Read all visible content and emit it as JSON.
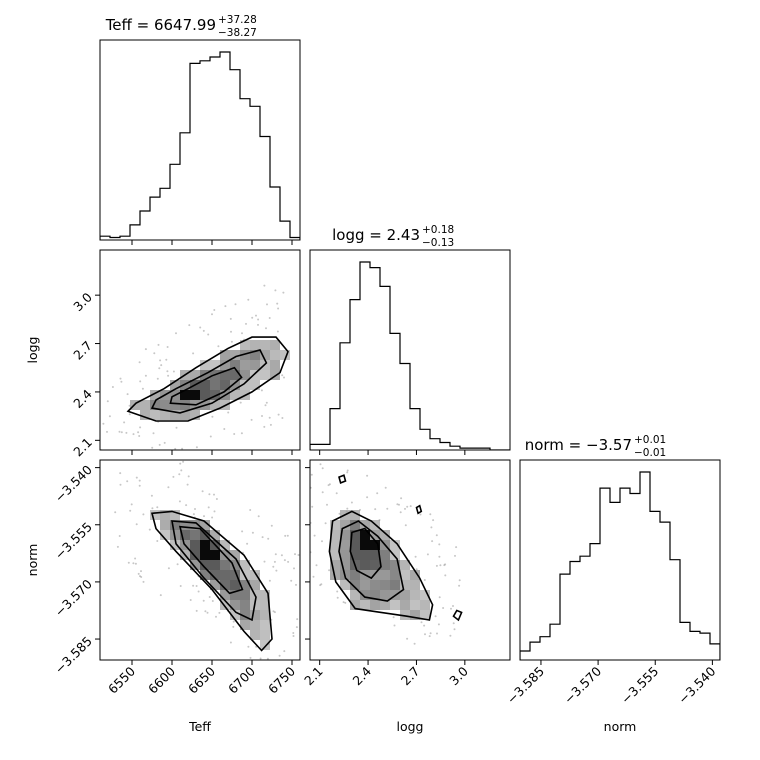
{
  "chart_data": {
    "type": "corner",
    "parameters": [
      "Teff",
      "logg",
      "norm"
    ],
    "axis_labels": [
      "Teff",
      "logg",
      "norm"
    ],
    "ranges": [
      [
        6510,
        6760
      ],
      [
        2.04,
        3.28
      ],
      [
        -3.5905,
        -3.538
      ]
    ],
    "ticks": [
      {
        "values": [
          6550,
          6600,
          6650,
          6700,
          6750
        ],
        "labels": [
          "6550",
          "6600",
          "6650",
          "6700",
          "6750"
        ]
      },
      {
        "values": [
          2.1,
          2.4,
          2.7,
          3.0
        ],
        "labels": [
          "2.1",
          "2.4",
          "2.7",
          "3.0"
        ]
      },
      {
        "values": [
          -3.585,
          -3.57,
          -3.555,
          -3.54
        ],
        "labels": [
          "−3.585",
          "−3.570",
          "−3.555",
          "−3.540"
        ]
      }
    ],
    "titles": [
      {
        "name": "Teff",
        "median": "6647.99",
        "plus": "+37.28",
        "minus": "−38.27"
      },
      {
        "name": "logg",
        "median": "2.43",
        "plus": "+0.18",
        "minus": "−0.13"
      },
      {
        "name": "norm",
        "median": "−3.57",
        "plus": "+0.01",
        "minus": "−0.01"
      }
    ],
    "histograms": [
      {
        "edges_start": 6510,
        "bin_width": 12.5,
        "counts": [
          3,
          2,
          3,
          12,
          23,
          34,
          41,
          60,
          85,
          140,
          142,
          145,
          149,
          135,
          112,
          106,
          82,
          42,
          15,
          2
        ]
      },
      {
        "edges_start": 2.04,
        "bin_width": 0.062,
        "counts": [
          3,
          3,
          22,
          57,
          80,
          100,
          97,
          87,
          62,
          46,
          22,
          11,
          6,
          4,
          2,
          1,
          1,
          1,
          0,
          0
        ]
      },
      {
        "edges_start": -3.5905,
        "bin_width": 0.002625,
        "counts": [
          5,
          10,
          13,
          20,
          48,
          55,
          58,
          65,
          96,
          88,
          96,
          93,
          105,
          83,
          77,
          56,
          21,
          16,
          15,
          9
        ]
      }
    ],
    "density_2d": [
      {
        "x": "Teff",
        "y": "logg",
        "x_range": [
          6510,
          6760
        ],
        "y_range": [
          2.04,
          3.28
        ],
        "peak": {
          "x": 6622,
          "y": 2.37
        },
        "contours": [
          [
            [
              6545,
              2.28
            ],
            [
              6580,
              2.22
            ],
            [
              6620,
              2.22
            ],
            [
              6660,
              2.3
            ],
            [
              6700,
              2.4
            ],
            [
              6735,
              2.52
            ],
            [
              6745,
              2.65
            ],
            [
              6730,
              2.74
            ],
            [
              6700,
              2.74
            ],
            [
              6670,
              2.67
            ],
            [
              6630,
              2.55
            ],
            [
              6590,
              2.42
            ],
            [
              6555,
              2.33
            ]
          ],
          [
            [
              6575,
              2.3
            ],
            [
              6610,
              2.27
            ],
            [
              6650,
              2.33
            ],
            [
              6690,
              2.45
            ],
            [
              6718,
              2.58
            ],
            [
              6710,
              2.66
            ],
            [
              6680,
              2.62
            ],
            [
              6645,
              2.52
            ],
            [
              6605,
              2.42
            ],
            [
              6580,
              2.35
            ]
          ],
          [
            [
              6598,
              2.33
            ],
            [
              6630,
              2.32
            ],
            [
              6665,
              2.4
            ],
            [
              6687,
              2.49
            ],
            [
              6678,
              2.55
            ],
            [
              6650,
              2.5
            ],
            [
              6620,
              2.42
            ],
            [
              6600,
              2.37
            ]
          ]
        ]
      },
      {
        "x": "Teff",
        "y": "norm",
        "x_range": [
          6510,
          6760
        ],
        "y_range": [
          -3.5905,
          -3.538
        ],
        "peak": {
          "x": 6645,
          "y": -3.5625
        },
        "contours": [
          [
            [
              6575,
              -3.552
            ],
            [
              6600,
              -3.5515
            ],
            [
              6640,
              -3.554
            ],
            [
              6690,
              -3.563
            ],
            [
              6720,
              -3.573
            ],
            [
              6725,
              -3.585
            ],
            [
              6712,
              -3.588
            ],
            [
              6690,
              -3.583
            ],
            [
              6650,
              -3.572
            ],
            [
              6605,
              -3.562
            ],
            [
              6580,
              -3.556
            ]
          ],
          [
            [
              6600,
              -3.554
            ],
            [
              6630,
              -3.5545
            ],
            [
              6680,
              -3.564
            ],
            [
              6705,
              -3.574
            ],
            [
              6700,
              -3.58
            ],
            [
              6680,
              -3.578
            ],
            [
              6640,
              -3.569
            ],
            [
              6605,
              -3.56
            ]
          ],
          [
            [
              6610,
              -3.5555
            ],
            [
              6635,
              -3.556
            ],
            [
              6675,
              -3.565
            ],
            [
              6688,
              -3.572
            ],
            [
              6672,
              -3.573
            ],
            [
              6640,
              -3.566
            ],
            [
              6615,
              -3.56
            ]
          ]
        ]
      },
      {
        "x": "logg",
        "y": "norm",
        "x_range": [
          2.04,
          3.28
        ],
        "y_range": [
          -3.5905,
          -3.538
        ],
        "peak": {
          "x": 2.39,
          "y": -3.56
        },
        "contours": [
          [
            [
              2.18,
              -3.554
            ],
            [
              2.3,
              -3.5515
            ],
            [
              2.42,
              -3.554
            ],
            [
              2.58,
              -3.56
            ],
            [
              2.72,
              -3.569
            ],
            [
              2.8,
              -3.576
            ],
            [
              2.78,
              -3.58
            ],
            [
              2.64,
              -3.579
            ],
            [
              2.48,
              -3.578
            ],
            [
              2.32,
              -3.577
            ],
            [
              2.2,
              -3.57
            ],
            [
              2.16,
              -3.562
            ]
          ],
          [
            [
              2.24,
              -3.556
            ],
            [
              2.34,
              -3.554
            ],
            [
              2.46,
              -3.558
            ],
            [
              2.58,
              -3.564
            ],
            [
              2.62,
              -3.572
            ],
            [
              2.52,
              -3.575
            ],
            [
              2.38,
              -3.574
            ],
            [
              2.26,
              -3.569
            ],
            [
              2.22,
              -3.562
            ]
          ],
          [
            [
              2.3,
              -3.557
            ],
            [
              2.38,
              -3.556
            ],
            [
              2.46,
              -3.56
            ],
            [
              2.48,
              -3.566
            ],
            [
              2.42,
              -3.569
            ],
            [
              2.33,
              -3.567
            ],
            [
              2.29,
              -3.562
            ]
          ],
          [
            [
              2.22,
              -3.5425
            ],
            [
              2.25,
              -3.542
            ],
            [
              2.26,
              -3.5435
            ],
            [
              2.23,
              -3.544
            ]
          ],
          [
            [
              2.7,
              -3.5505
            ],
            [
              2.72,
              -3.55
            ],
            [
              2.73,
              -3.5515
            ],
            [
              2.71,
              -3.552
            ]
          ],
          [
            [
              2.95,
              -3.5775
            ],
            [
              2.98,
              -3.578
            ],
            [
              2.96,
              -3.58
            ],
            [
              2.93,
              -3.579
            ]
          ]
        ]
      }
    ]
  }
}
